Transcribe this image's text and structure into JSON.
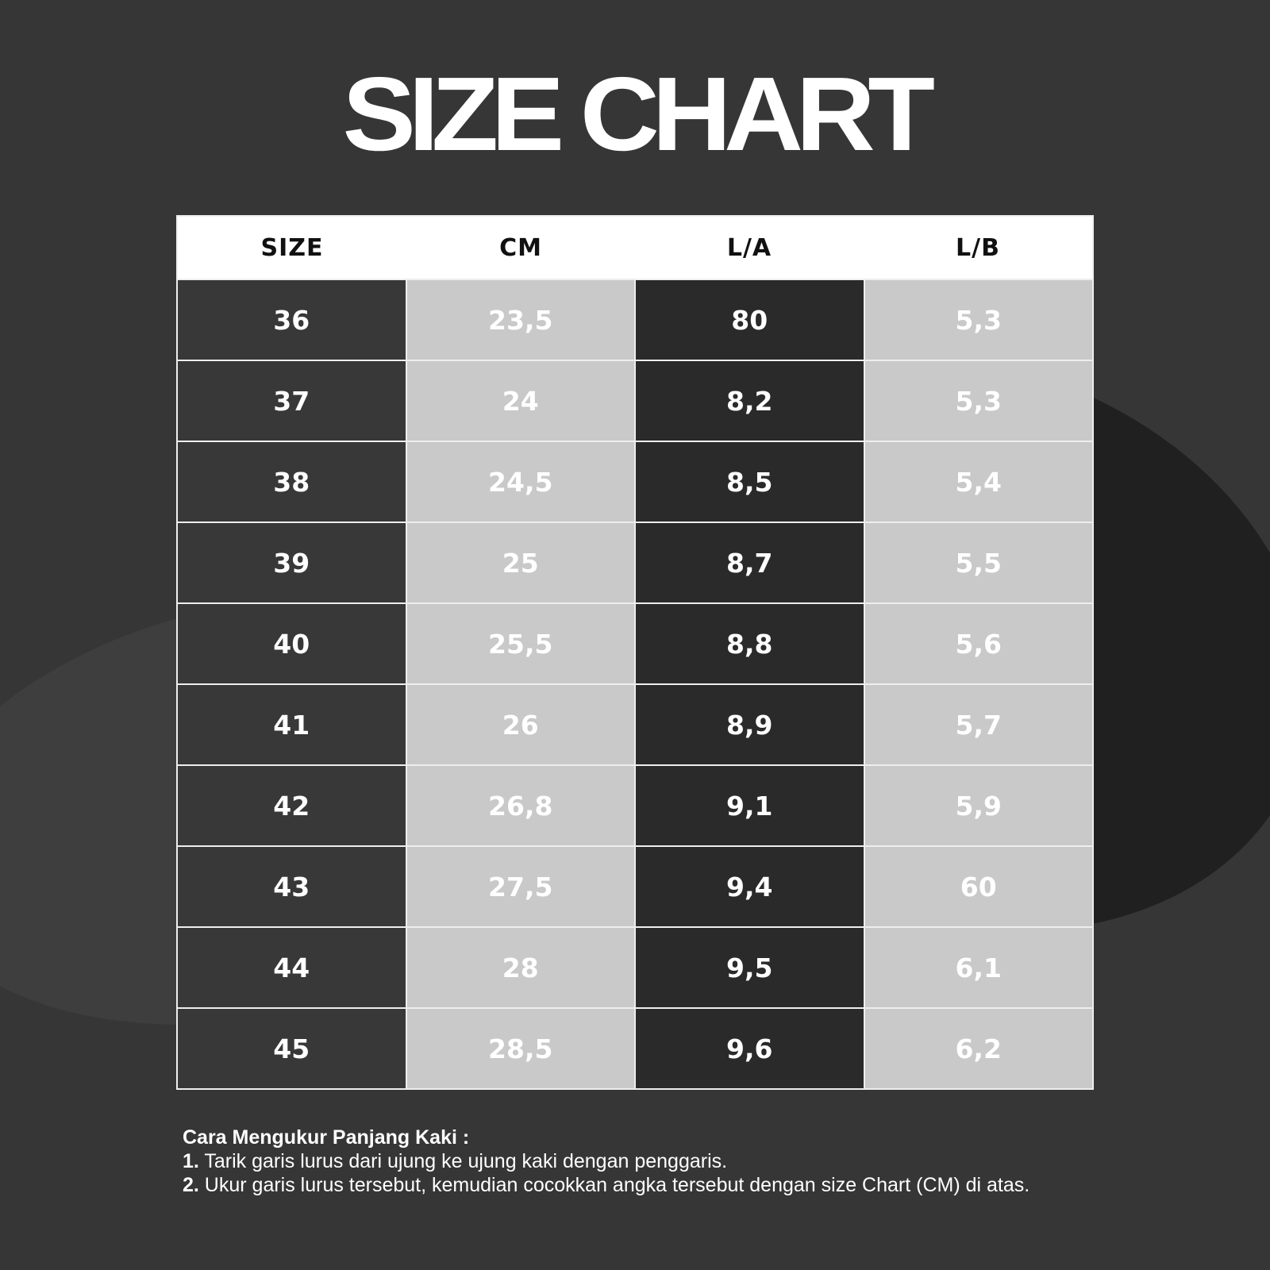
{
  "title": "SIZE CHART",
  "table": {
    "headers": [
      "SIZE",
      "CM",
      "L/A",
      "L/B"
    ],
    "rows": [
      [
        "36",
        "23,5",
        "80",
        "5,3"
      ],
      [
        "37",
        "24",
        "8,2",
        "5,3"
      ],
      [
        "38",
        "24,5",
        "8,5",
        "5,4"
      ],
      [
        "39",
        "25",
        "8,7",
        "5,5"
      ],
      [
        "40",
        "25,5",
        "8,8",
        "5,6"
      ],
      [
        "41",
        "26",
        "8,9",
        "5,7"
      ],
      [
        "42",
        "26,8",
        "9,1",
        "5,9"
      ],
      [
        "43",
        "27,5",
        "9,4",
        "60"
      ],
      [
        "44",
        "28",
        "9,5",
        "6,1"
      ],
      [
        "45",
        "28,5",
        "9,6",
        "6,2"
      ]
    ]
  },
  "notes": {
    "heading": "Cara Mengukur Panjang Kaki :",
    "steps": [
      {
        "num": "1.",
        "text": " Tarik garis lurus dari ujung ke ujung kaki dengan penggaris."
      },
      {
        "num": "2.",
        "text": " Ukur garis lurus tersebut, kemudian cocokkan angka tersebut dengan size Chart (CM) di atas."
      }
    ]
  },
  "colors": {
    "background": "#363636",
    "light_cell": "#c9c9c9",
    "header": "#ffffff"
  }
}
